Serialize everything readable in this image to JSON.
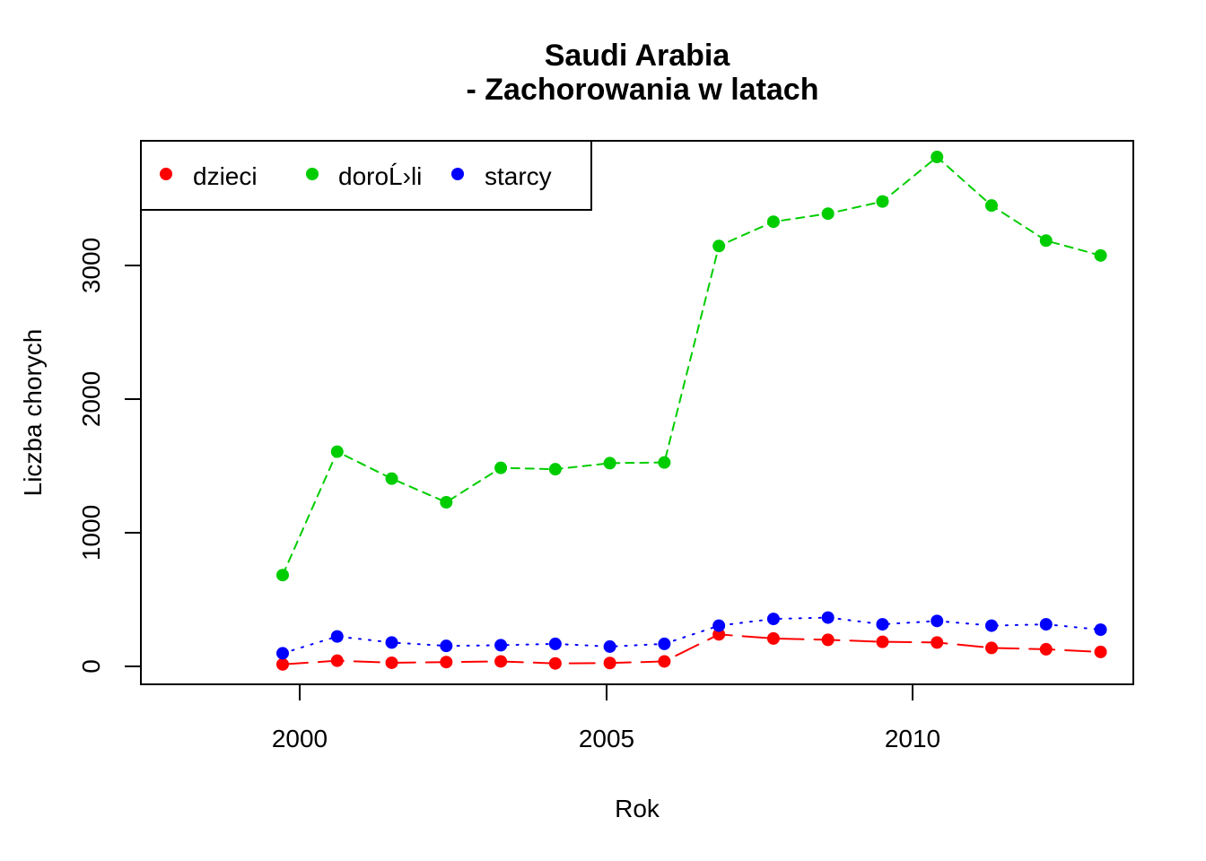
{
  "chart_data": {
    "type": "line",
    "title": "Saudi Arabia",
    "subtitle": "- Zachorowania w latach",
    "xlabel": "Rok",
    "ylabel": "Liczba chorych",
    "x": [
      1998,
      1999,
      2000,
      2001,
      2002,
      2003,
      2004,
      2005,
      2006,
      2007,
      2008,
      2009,
      2010,
      2011,
      2012,
      2013
    ],
    "x_ticks": [
      "2000",
      "2005",
      "2010"
    ],
    "y_ticks": [
      "0",
      "1000",
      "2000",
      "3000"
    ],
    "xlim": [
      1995.4,
      2013.6
    ],
    "ylim": [
      -130,
      3900
    ],
    "legend_position": "top-left",
    "series": [
      {
        "name": "dzieci",
        "color": "#ff0000",
        "line_style": "long-dash",
        "values": [
          18,
          45,
          30,
          35,
          40,
          25,
          28,
          40,
          240,
          210,
          200,
          185,
          180,
          140,
          130,
          110
        ]
      },
      {
        "name": "doroĹ›li",
        "color": "#00cd00",
        "line_style": "dashed",
        "values": [
          680,
          1595,
          1395,
          1220,
          1475,
          1465,
          1510,
          1515,
          3120,
          3300,
          3360,
          3450,
          3780,
          3420,
          3160,
          3050
        ]
      },
      {
        "name": "starcy",
        "color": "#0000ff",
        "line_style": "dotted",
        "values": [
          100,
          225,
          180,
          155,
          160,
          170,
          150,
          170,
          305,
          355,
          365,
          315,
          340,
          305,
          315,
          275
        ]
      }
    ]
  }
}
